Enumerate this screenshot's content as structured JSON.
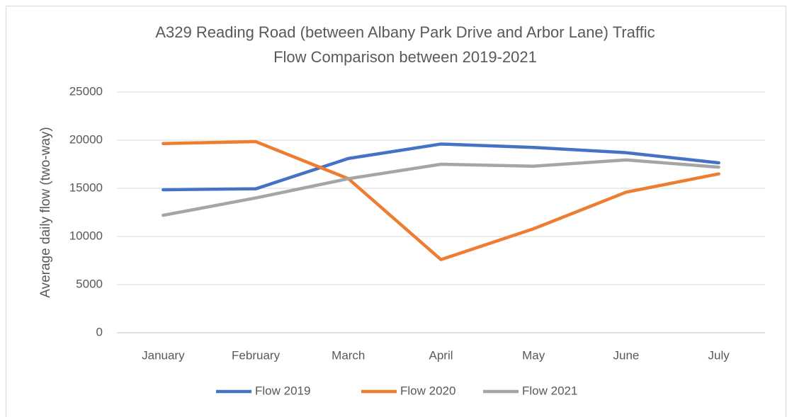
{
  "chart_data": {
    "type": "line",
    "title": "A329 Reading Road (between Albany Park Drive and Arbor Lane) Traffic Flow Comparison between 2019-2021",
    "ylabel": "Average daily flow (two-way)",
    "categories": [
      "January",
      "February",
      "March",
      "April",
      "May",
      "June",
      "July"
    ],
    "series": [
      {
        "name": "Flow 2019",
        "color": "#4472c4",
        "values": [
          14850,
          14950,
          18100,
          19600,
          19250,
          18700,
          17650
        ]
      },
      {
        "name": "Flow 2020",
        "color": "#ed7d31",
        "values": [
          19650,
          19850,
          16000,
          7600,
          10800,
          14600,
          16500
        ]
      },
      {
        "name": "Flow 2021",
        "color": "#a5a5a5",
        "values": [
          12200,
          14000,
          16000,
          17500,
          17300,
          17950,
          17200
        ]
      }
    ],
    "ylim": [
      0,
      25000
    ],
    "yticks": [
      0,
      5000,
      10000,
      15000,
      20000,
      25000
    ],
    "grid": true,
    "legend": "bottom"
  }
}
